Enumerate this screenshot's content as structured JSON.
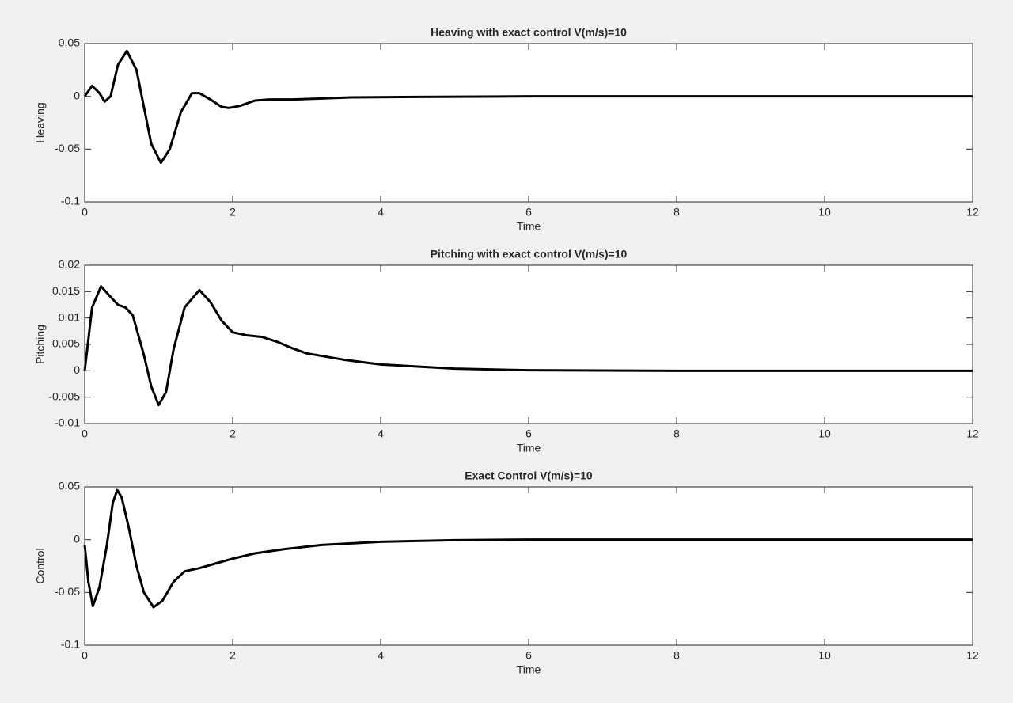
{
  "chart_data": [
    {
      "type": "line",
      "title": "Heaving with exact control V(m/s)=10",
      "xlabel": "Time",
      "ylabel": "Heaving",
      "x": [
        0,
        0.1,
        0.2,
        0.27,
        0.35,
        0.45,
        0.57,
        0.7,
        0.8,
        0.9,
        1.03,
        1.15,
        1.3,
        1.45,
        1.55,
        1.7,
        1.85,
        1.95,
        2.1,
        2.3,
        2.5,
        2.8,
        3.2,
        3.6,
        4.5,
        6,
        12
      ],
      "values": [
        0,
        0.01,
        0.003,
        -0.005,
        0,
        0.03,
        0.043,
        0.025,
        -0.01,
        -0.045,
        -0.063,
        -0.05,
        -0.015,
        0.003,
        0.003,
        -0.003,
        -0.01,
        -0.011,
        -0.009,
        -0.004,
        -0.003,
        -0.003,
        -0.002,
        -0.001,
        -0.0005,
        0,
        0
      ],
      "color": "#000000",
      "xlim": [
        0,
        12
      ],
      "xticks": [
        0,
        2,
        4,
        6,
        8,
        10,
        12
      ],
      "ylim": [
        -0.1,
        0.05
      ],
      "yticks": [
        -0.1,
        -0.05,
        0,
        0.05
      ]
    },
    {
      "type": "line",
      "title": "Pitching with exact control V(m/s)=10",
      "xlabel": "Time",
      "ylabel": "Pitching",
      "x": [
        0,
        0.1,
        0.22,
        0.35,
        0.45,
        0.55,
        0.65,
        0.8,
        0.9,
        1.0,
        1.1,
        1.2,
        1.35,
        1.55,
        1.7,
        1.85,
        2.0,
        2.2,
        2.4,
        2.6,
        2.8,
        3.0,
        3.5,
        4,
        5,
        6,
        8,
        12
      ],
      "values": [
        0,
        0.012,
        0.016,
        0.014,
        0.0125,
        0.012,
        0.0105,
        0.003,
        -0.003,
        -0.0065,
        -0.004,
        0.004,
        0.012,
        0.0153,
        0.013,
        0.0095,
        0.0073,
        0.0067,
        0.0064,
        0.0055,
        0.0043,
        0.0033,
        0.0021,
        0.0012,
        0.0004,
        0.0001,
        0,
        0
      ],
      "color": "#000000",
      "xlim": [
        0,
        12
      ],
      "xticks": [
        0,
        2,
        4,
        6,
        8,
        10,
        12
      ],
      "ylim": [
        -0.01,
        0.02
      ],
      "yticks": [
        -0.01,
        -0.005,
        0,
        0.005,
        0.01,
        0.015,
        0.02
      ]
    },
    {
      "type": "line",
      "title": "Exact Control V(m/s)=10",
      "xlabel": "Time",
      "ylabel": "Control",
      "x": [
        0,
        0.05,
        0.11,
        0.2,
        0.3,
        0.38,
        0.44,
        0.5,
        0.6,
        0.7,
        0.8,
        0.93,
        1.05,
        1.2,
        1.35,
        1.55,
        1.8,
        2.0,
        2.3,
        2.7,
        3.2,
        4,
        5,
        6,
        12
      ],
      "values": [
        -0.005,
        -0.04,
        -0.063,
        -0.045,
        -0.005,
        0.035,
        0.047,
        0.04,
        0.01,
        -0.025,
        -0.05,
        -0.064,
        -0.058,
        -0.04,
        -0.03,
        -0.027,
        -0.022,
        -0.018,
        -0.013,
        -0.009,
        -0.005,
        -0.002,
        -0.0005,
        0,
        0
      ],
      "color": "#000000",
      "xlim": [
        0,
        12
      ],
      "xticks": [
        0,
        2,
        4,
        6,
        8,
        10,
        12
      ],
      "ylim": [
        -0.1,
        0.05
      ],
      "yticks": [
        -0.1,
        -0.05,
        0,
        0.05
      ]
    }
  ]
}
